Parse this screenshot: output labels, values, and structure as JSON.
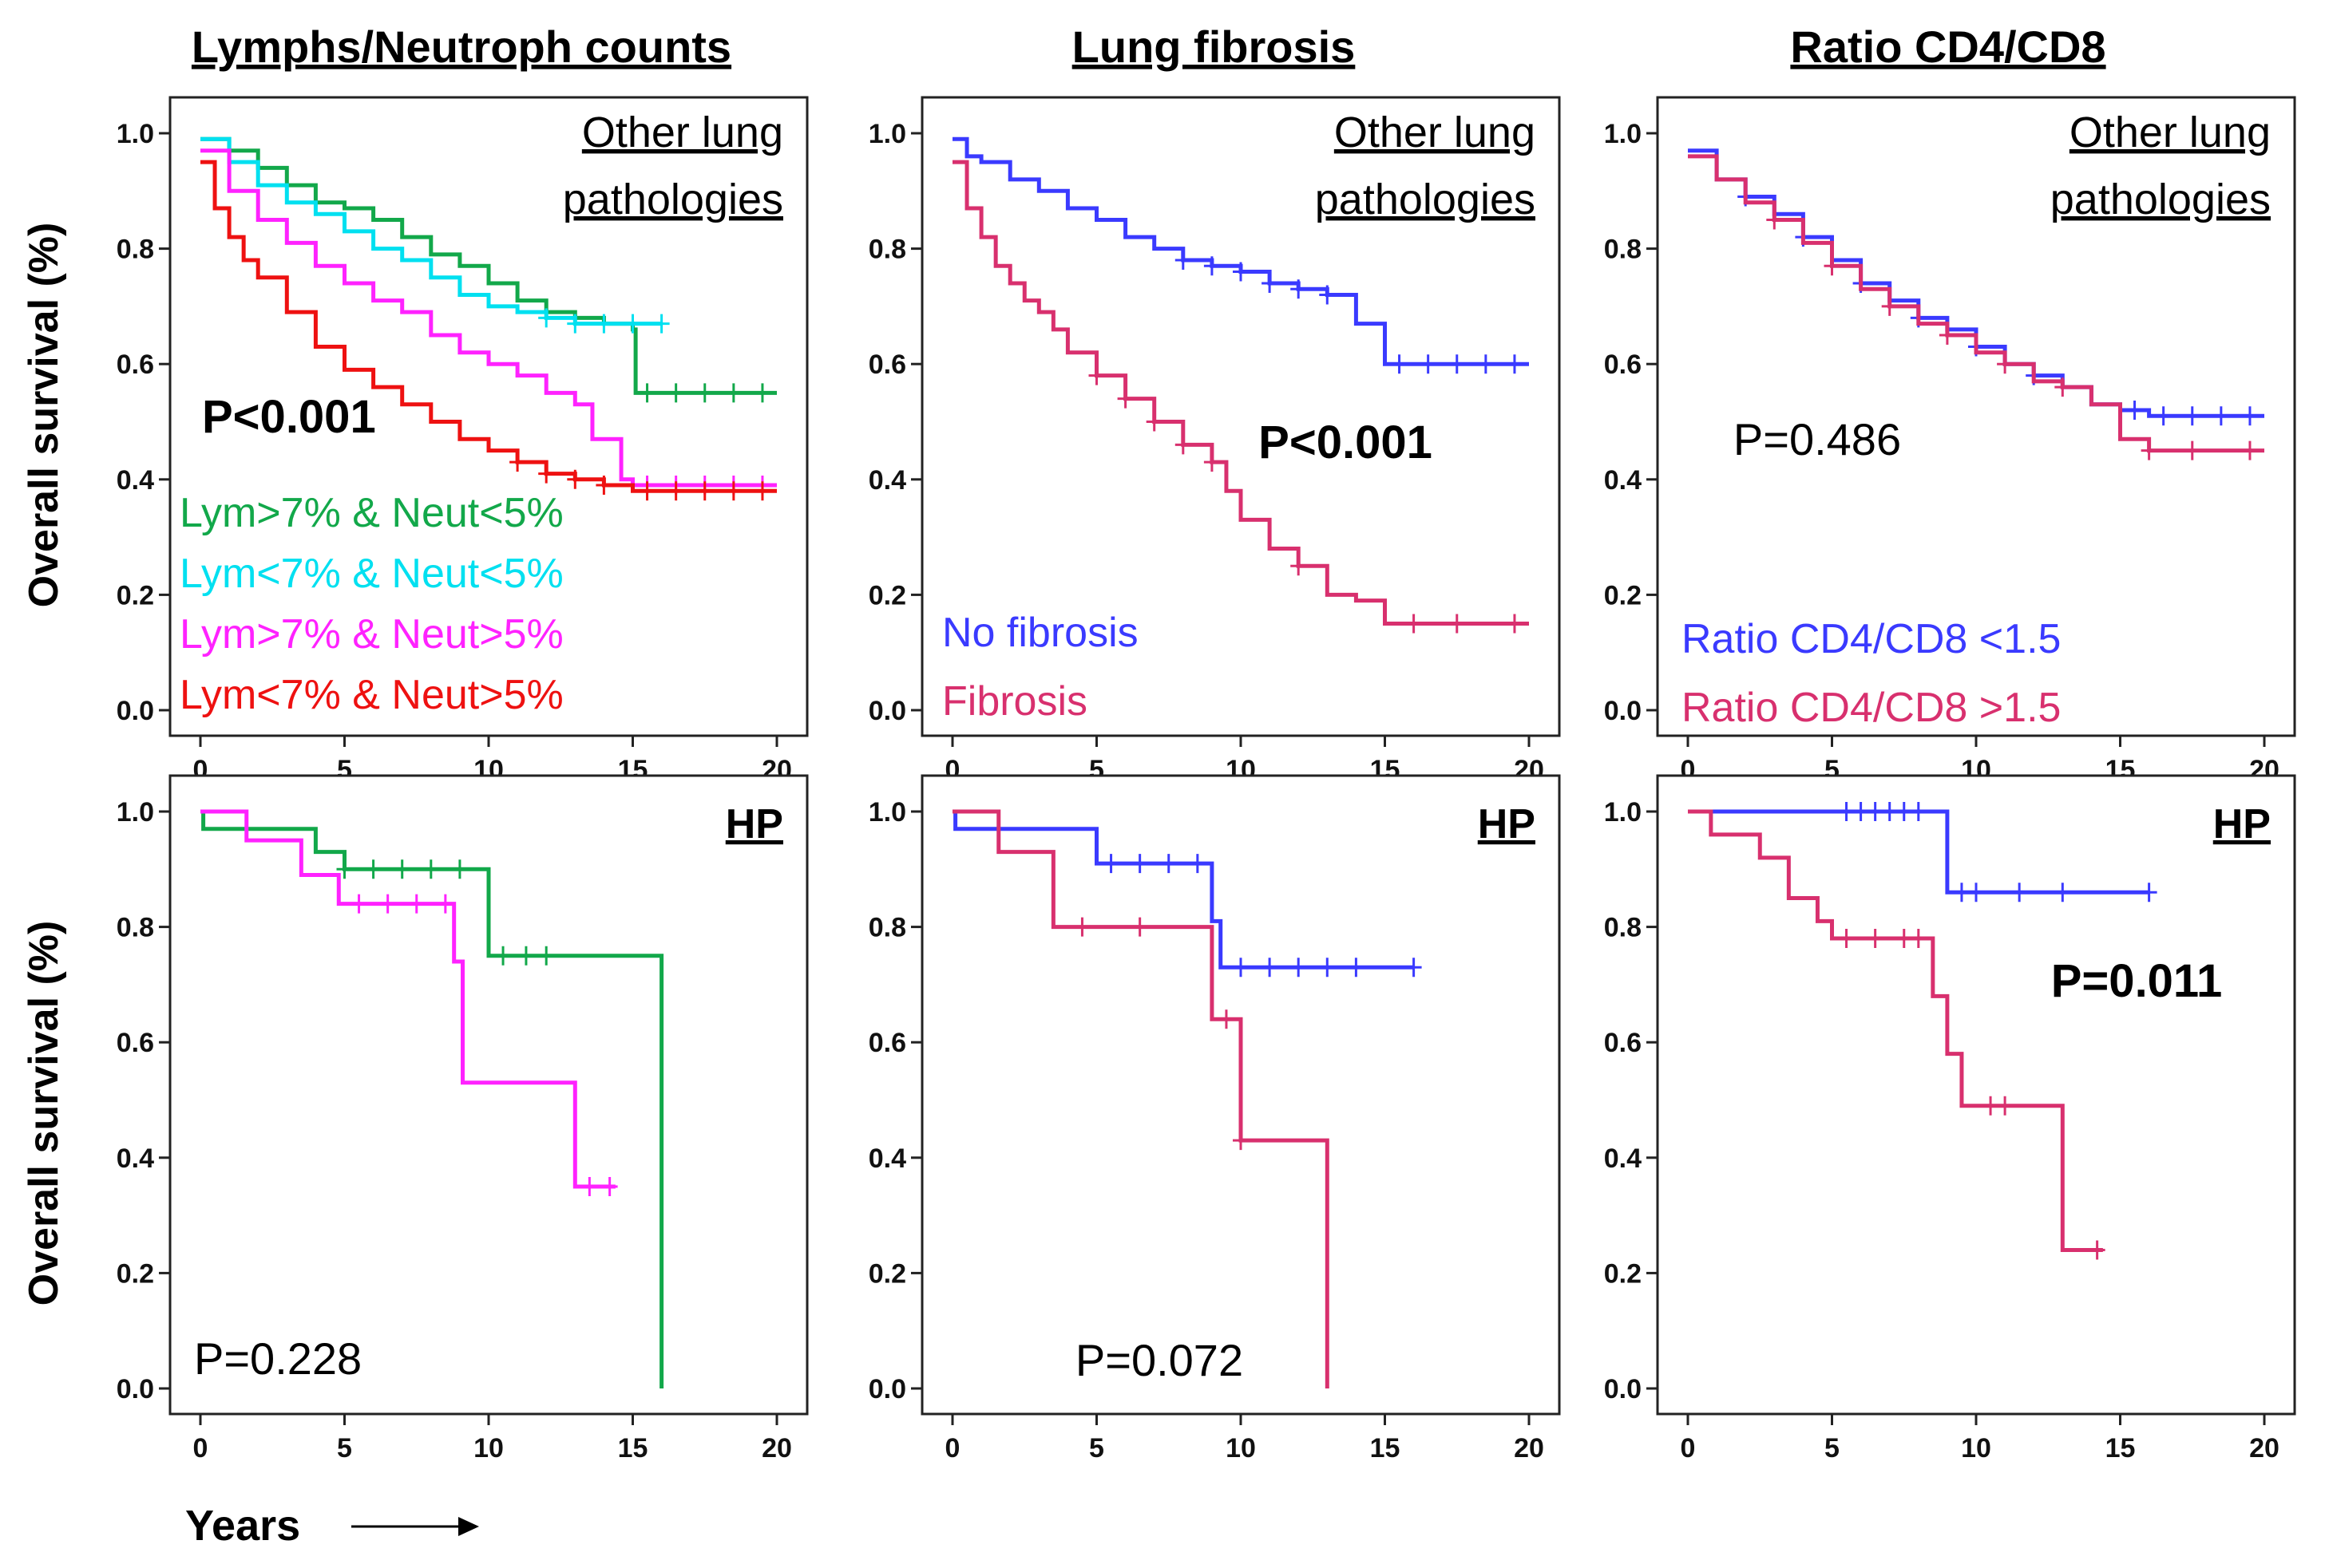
{
  "figure": {
    "y_axis_label": "Overall survival (%)",
    "x_axis_label": "Years"
  },
  "chart_data": [
    {
      "type": "line",
      "column_title": "Lymphs/Neutroph counts",
      "group_label": "Other lung pathologies",
      "group_label_lines": [
        "Other lung",
        "pathologies"
      ],
      "group_label_bold": false,
      "p_value": "P<0.001",
      "p_value_bold": true,
      "xlim": [
        0,
        20
      ],
      "ylim": [
        0.0,
        1.0
      ],
      "x_ticks": [
        "0",
        "5",
        "10",
        "15",
        "20"
      ],
      "y_ticks": [
        "0.0",
        "0.2",
        "0.4",
        "0.6",
        "0.8",
        "1.0"
      ],
      "series": [
        {
          "name": "Lym>7% & Neut<5%",
          "color": "#12a84a",
          "x": [
            0,
            1,
            2,
            3,
            4,
            5,
            6,
            7,
            8,
            9,
            10,
            11,
            12,
            13,
            14,
            15,
            15.1,
            16,
            20
          ],
          "y": [
            0.99,
            0.97,
            0.94,
            0.91,
            0.88,
            0.87,
            0.85,
            0.82,
            0.79,
            0.77,
            0.74,
            0.71,
            0.69,
            0.68,
            0.67,
            0.66,
            0.55,
            0.55,
            0.55
          ],
          "censor_x": [
            15.5,
            16.5,
            17.5,
            18.5,
            19.5
          ]
        },
        {
          "name": "Lym<7% & Neut<5%",
          "color": "#00e0f0",
          "x": [
            0,
            1,
            2,
            3,
            4,
            5,
            6,
            7,
            8,
            9,
            10,
            11,
            12,
            13,
            14,
            15,
            16
          ],
          "y": [
            0.99,
            0.95,
            0.91,
            0.88,
            0.86,
            0.83,
            0.8,
            0.78,
            0.75,
            0.72,
            0.7,
            0.69,
            0.68,
            0.67,
            0.67,
            0.67,
            0.67
          ],
          "censor_x": [
            12,
            13,
            14,
            15,
            16
          ]
        },
        {
          "name": "Lym>7% & Neut>5%",
          "color": "#ff22ff",
          "x": [
            0,
            1,
            2,
            3,
            4,
            5,
            6,
            7,
            8,
            9,
            10,
            11,
            12,
            13,
            13.6,
            14,
            14.6,
            15,
            16,
            20
          ],
          "y": [
            0.97,
            0.9,
            0.85,
            0.81,
            0.77,
            0.74,
            0.71,
            0.69,
            0.65,
            0.62,
            0.6,
            0.58,
            0.55,
            0.53,
            0.47,
            0.47,
            0.4,
            0.39,
            0.39,
            0.39
          ],
          "censor_x": [
            15.5,
            16.5,
            17.5,
            18.5,
            19.5
          ]
        },
        {
          "name": "Lym<7% & Neut>5%",
          "color": "#ee1111",
          "x": [
            0,
            0.5,
            1,
            1.5,
            2,
            3,
            4,
            5,
            6,
            7,
            8,
            9,
            10,
            11,
            12,
            13,
            14,
            15,
            16,
            20
          ],
          "y": [
            0.95,
            0.87,
            0.82,
            0.78,
            0.75,
            0.69,
            0.63,
            0.59,
            0.56,
            0.53,
            0.5,
            0.47,
            0.45,
            0.43,
            0.41,
            0.4,
            0.39,
            0.38,
            0.38,
            0.38
          ],
          "censor_x": [
            11,
            12,
            13,
            14,
            15.5,
            16.5,
            17.5,
            18.5,
            19.5
          ]
        }
      ]
    },
    {
      "type": "line",
      "column_title": "Lung fibrosis",
      "group_label": "Other lung pathologies",
      "group_label_lines": [
        "Other lung",
        "pathologies"
      ],
      "group_label_bold": false,
      "p_value": "P<0.001",
      "p_value_bold": true,
      "xlim": [
        0,
        20
      ],
      "ylim": [
        0.0,
        1.0
      ],
      "x_ticks": [
        "0",
        "5",
        "10",
        "15",
        "20"
      ],
      "y_ticks": [
        "0.0",
        "0.2",
        "0.4",
        "0.6",
        "0.8",
        "1.0"
      ],
      "series": [
        {
          "name": "No fibrosis",
          "color": "#3a3aff",
          "x": [
            0,
            0.5,
            1,
            2,
            3,
            4,
            5,
            6,
            7,
            8,
            9,
            10,
            11,
            12,
            13,
            14,
            15,
            16,
            20
          ],
          "y": [
            0.99,
            0.96,
            0.95,
            0.92,
            0.9,
            0.87,
            0.85,
            0.82,
            0.8,
            0.78,
            0.77,
            0.76,
            0.74,
            0.73,
            0.72,
            0.67,
            0.6,
            0.6,
            0.6
          ],
          "censor_x": [
            8,
            9,
            10,
            11,
            12,
            13,
            15.5,
            16.5,
            17.5,
            18.5,
            19.5
          ]
        },
        {
          "name": "Fibrosis",
          "color": "#d8306e",
          "x": [
            0,
            0.5,
            1,
            1.5,
            2,
            2.5,
            3,
            3.5,
            4,
            5,
            6,
            7,
            8,
            9,
            9.5,
            10,
            11,
            12,
            13,
            14,
            15,
            16,
            20
          ],
          "y": [
            0.95,
            0.87,
            0.82,
            0.77,
            0.74,
            0.71,
            0.69,
            0.66,
            0.62,
            0.58,
            0.54,
            0.5,
            0.46,
            0.43,
            0.38,
            0.33,
            0.28,
            0.25,
            0.2,
            0.19,
            0.15,
            0.15,
            0.15
          ],
          "censor_x": [
            5,
            6,
            7,
            8,
            9,
            12,
            16,
            17.5,
            19.5
          ]
        }
      ],
      "p_value_position": "center-right"
    },
    {
      "type": "line",
      "column_title": "Ratio CD4/CD8",
      "group_label": "Other lung pathologies",
      "group_label_lines": [
        "Other lung",
        "pathologies"
      ],
      "group_label_bold": false,
      "p_value": "P=0.486",
      "p_value_bold": false,
      "xlim": [
        0,
        20
      ],
      "ylim": [
        0.0,
        1.0
      ],
      "x_ticks": [
        "0",
        "5",
        "10",
        "15",
        "20"
      ],
      "y_ticks": [
        "0.0",
        "0.2",
        "0.4",
        "0.6",
        "0.8",
        "1.0"
      ],
      "series": [
        {
          "name": "Ratio CD4/CD8 <1.5",
          "color": "#3a3aff",
          "x": [
            0,
            1,
            2,
            3,
            4,
            5,
            6,
            7,
            8,
            9,
            10,
            11,
            12,
            13,
            14,
            15,
            16,
            20
          ],
          "y": [
            0.97,
            0.92,
            0.89,
            0.86,
            0.82,
            0.78,
            0.74,
            0.71,
            0.68,
            0.66,
            0.63,
            0.6,
            0.58,
            0.56,
            0.53,
            0.52,
            0.51,
            0.51
          ],
          "censor_x": [
            2,
            4,
            6,
            8,
            10,
            12,
            15.5,
            16.5,
            17.5,
            18.5,
            19.5
          ]
        },
        {
          "name": "Ratio CD4/CD8 >1.5",
          "color": "#d8306e",
          "x": [
            0,
            1,
            2,
            3,
            4,
            5,
            6,
            7,
            8,
            9,
            10,
            11,
            12,
            13,
            14,
            15,
            16,
            20
          ],
          "y": [
            0.96,
            0.92,
            0.88,
            0.85,
            0.81,
            0.77,
            0.73,
            0.7,
            0.67,
            0.65,
            0.62,
            0.6,
            0.57,
            0.56,
            0.53,
            0.47,
            0.45,
            0.45
          ],
          "censor_x": [
            3,
            5,
            7,
            9,
            11,
            13,
            16,
            17.5,
            19.5
          ]
        }
      ],
      "p_value_position": "center-left"
    },
    {
      "type": "line",
      "column_title": "",
      "group_label": "HP",
      "group_label_lines": [
        "HP"
      ],
      "group_label_bold": true,
      "p_value": "P=0.228",
      "p_value_bold": false,
      "xlim": [
        0,
        20
      ],
      "ylim": [
        0.0,
        1.0
      ],
      "x_ticks": [
        "0",
        "5",
        "10",
        "15",
        "20"
      ],
      "y_ticks": [
        "0.0",
        "0.2",
        "0.4",
        "0.6",
        "0.8",
        "1.0"
      ],
      "series": [
        {
          "name": "Lym>7% & Neut<5%",
          "color": "#12a84a",
          "x": [
            0,
            0.1,
            4,
            5,
            10,
            16,
            16
          ],
          "y": [
            1.0,
            0.97,
            0.93,
            0.9,
            0.75,
            0.75,
            0.0
          ],
          "censor_x": [
            5,
            6,
            7,
            8,
            9,
            10.5,
            11.3,
            12
          ]
        },
        {
          "name": "Lym>7% & Neut>5%",
          "color": "#ff22ff",
          "x": [
            0,
            1.6,
            3.5,
            4.8,
            8.8,
            9.1,
            13,
            14.4
          ],
          "y": [
            1.0,
            0.95,
            0.89,
            0.84,
            0.74,
            0.53,
            0.35,
            0.35
          ],
          "censor_x": [
            5.5,
            6.5,
            7.5,
            8.5,
            13.5,
            14.2
          ]
        }
      ],
      "p_value_position": "bottom-left"
    },
    {
      "type": "line",
      "column_title": "",
      "group_label": "HP",
      "group_label_lines": [
        "HP"
      ],
      "group_label_bold": true,
      "p_value": "P=0.072",
      "p_value_bold": false,
      "xlim": [
        0,
        20
      ],
      "ylim": [
        0.0,
        1.0
      ],
      "x_ticks": [
        "0",
        "5",
        "10",
        "15",
        "20"
      ],
      "y_ticks": [
        "0.0",
        "0.2",
        "0.4",
        "0.6",
        "0.8",
        "1.0"
      ],
      "series": [
        {
          "name": "No fibrosis",
          "color": "#3a3aff",
          "x": [
            0,
            0.1,
            5,
            9,
            9.3,
            16
          ],
          "y": [
            1.0,
            0.97,
            0.91,
            0.81,
            0.73,
            0.73
          ],
          "censor_x": [
            5.5,
            6.5,
            7.5,
            8.5,
            10,
            11,
            12,
            13,
            14,
            16
          ]
        },
        {
          "name": "Fibrosis",
          "color": "#d8306e",
          "x": [
            0,
            1.6,
            3.5,
            9,
            10,
            13,
            13
          ],
          "y": [
            1.0,
            0.93,
            0.8,
            0.64,
            0.43,
            0.43,
            0.0
          ],
          "censor_x": [
            4.5,
            6.5,
            9.5,
            10
          ]
        }
      ],
      "p_value_position": "bottom-center"
    },
    {
      "type": "line",
      "column_title": "",
      "group_label": "HP",
      "group_label_lines": [
        "HP"
      ],
      "group_label_bold": true,
      "p_value": "P=0.011",
      "p_value_bold": true,
      "xlim": [
        0,
        20
      ],
      "ylim": [
        0.0,
        1.0
      ],
      "x_ticks": [
        "0",
        "5",
        "10",
        "15",
        "20"
      ],
      "y_ticks": [
        "0.0",
        "0.2",
        "0.4",
        "0.6",
        "0.8",
        "1.0"
      ],
      "series": [
        {
          "name": "Ratio CD4/CD8 <1.5",
          "color": "#3a3aff",
          "x": [
            0,
            9,
            16
          ],
          "y": [
            1.0,
            0.86,
            0.86
          ],
          "censor_x": [
            5.5,
            6,
            6.5,
            7,
            7.5,
            8,
            9.5,
            10,
            11.5,
            13,
            16
          ]
        },
        {
          "name": "Ratio CD4/CD8 >1.5",
          "color": "#d8306e",
          "x": [
            0,
            0.8,
            2.5,
            3.5,
            4.5,
            5,
            8.5,
            9,
            9.5,
            10,
            13,
            14.4
          ],
          "y": [
            1.0,
            0.96,
            0.92,
            0.85,
            0.81,
            0.78,
            0.68,
            0.58,
            0.49,
            0.49,
            0.24,
            0.24
          ],
          "censor_x": [
            5.5,
            6.5,
            7.5,
            8,
            10.5,
            11,
            14.2
          ]
        }
      ],
      "p_value_position": "center-right"
    }
  ]
}
